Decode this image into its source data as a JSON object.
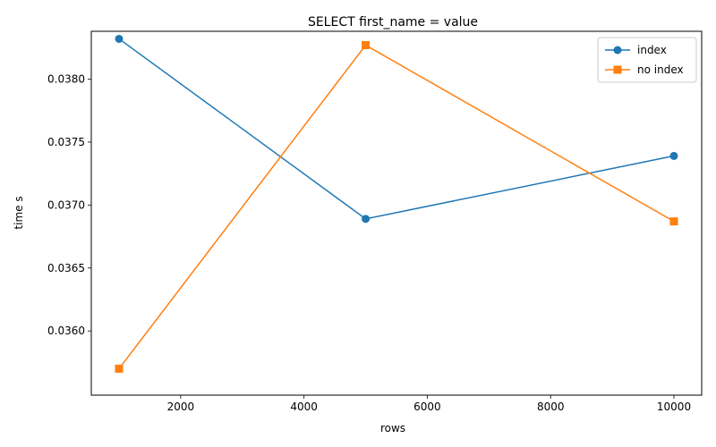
{
  "chart_data": {
    "type": "line",
    "title": "SELECT first_name = value",
    "xlabel": "rows",
    "ylabel": "time s",
    "xlim": [
      550,
      10450
    ],
    "ylim": [
      0.03549,
      0.03838
    ],
    "xticks": [
      2000,
      4000,
      6000,
      8000,
      10000
    ],
    "xtick_labels": [
      "2000",
      "4000",
      "6000",
      "8000",
      "10000"
    ],
    "yticks": [
      0.036,
      0.0365,
      0.037,
      0.0375,
      0.038
    ],
    "ytick_labels": [
      "0.0360",
      "0.0365",
      "0.0370",
      "0.0375",
      "0.0380"
    ],
    "grid": false,
    "legend_position": "upper right",
    "series": [
      {
        "name": "index",
        "color": "#1f77b4",
        "marker": "circle",
        "x": [
          1000,
          5000,
          10000
        ],
        "y": [
          0.03832,
          0.03689,
          0.03739
        ]
      },
      {
        "name": "no index",
        "color": "#ff7f0e",
        "marker": "square",
        "x": [
          1000,
          5000,
          10000
        ],
        "y": [
          0.0357,
          0.03827,
          0.03687
        ]
      }
    ]
  }
}
